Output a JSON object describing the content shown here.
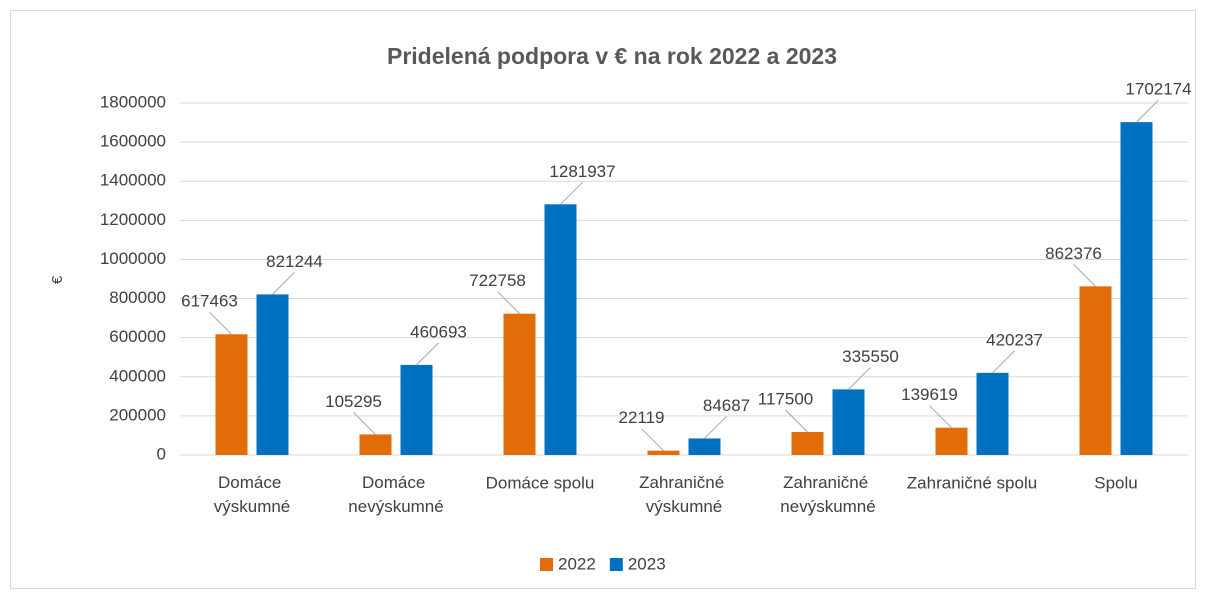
{
  "chart_data": {
    "type": "bar",
    "title": "Pridelená podpora v € na rok 2022 a 2023",
    "y_label": "€",
    "categories": [
      "Domáce výskumné",
      "Domáce nevýskumné",
      "Domáce spolu",
      "Zahraničné výskumné",
      "Zahraničné nevýskumné",
      "Zahraničné spolu",
      "Spolu"
    ],
    "series": [
      {
        "name": "2022",
        "color": "#e36c0a",
        "values": [
          617463,
          105295,
          722758,
          22119,
          117500,
          139619,
          862376
        ]
      },
      {
        "name": "2023",
        "color": "#0070c0",
        "values": [
          821244,
          460693,
          1281937,
          84687,
          335550,
          420237,
          1702174
        ]
      }
    ],
    "ylim": [
      0,
      1800000
    ],
    "yticks": [
      0,
      200000,
      400000,
      600000,
      800000,
      1000000,
      1200000,
      1400000,
      1600000,
      1800000
    ],
    "grid": true,
    "legend": "bottom"
  }
}
